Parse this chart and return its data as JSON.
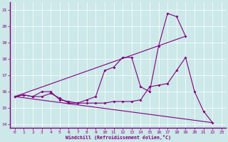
{
  "xlabel": "Windchill (Refroidissement éolien,°C)",
  "xlim": [
    -0.5,
    23.5
  ],
  "ylim": [
    13.8,
    21.5
  ],
  "xticks": [
    0,
    1,
    2,
    3,
    4,
    5,
    6,
    7,
    8,
    9,
    10,
    11,
    12,
    13,
    14,
    15,
    16,
    17,
    18,
    19,
    20,
    21,
    22,
    23
  ],
  "yticks": [
    14,
    15,
    16,
    17,
    18,
    19,
    20,
    21
  ],
  "bg_color": "#cce8e8",
  "line_color": "#800080",
  "grid_color": "#ffffff",
  "series1_x": [
    0,
    1,
    2,
    3,
    4,
    5,
    6,
    7,
    8,
    9,
    10,
    11,
    12,
    13,
    14,
    15,
    16,
    17,
    18,
    19,
    20,
    21,
    22
  ],
  "series1_y": [
    15.7,
    15.8,
    15.7,
    15.7,
    15.9,
    15.6,
    15.3,
    15.3,
    15.3,
    15.3,
    15.3,
    15.4,
    15.4,
    15.4,
    15.5,
    16.3,
    16.4,
    16.5,
    17.3,
    18.1,
    16.0,
    14.8,
    14.1
  ],
  "series2_x": [
    0,
    1,
    2,
    3,
    4,
    5,
    6,
    7,
    8,
    9,
    10,
    11,
    12,
    13,
    14,
    15,
    16,
    17,
    18,
    19
  ],
  "series2_y": [
    15.7,
    15.8,
    15.7,
    16.0,
    16.0,
    15.5,
    15.4,
    15.3,
    15.5,
    15.7,
    17.3,
    17.5,
    18.1,
    18.1,
    16.3,
    16.0,
    18.8,
    20.8,
    20.6,
    19.4
  ],
  "series3_x": [
    0,
    22
  ],
  "series3_y": [
    15.7,
    14.1
  ],
  "series4_x": [
    0,
    19
  ],
  "series4_y": [
    15.7,
    19.4
  ],
  "lw": 0.8,
  "marker": "D",
  "ms": 2.0
}
